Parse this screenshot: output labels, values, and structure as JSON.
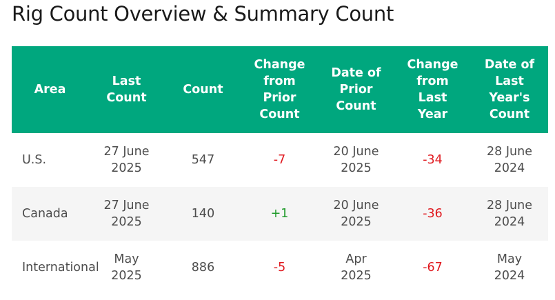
{
  "title": "Rig Count Overview & Summary Count",
  "headers": [
    "Area",
    "Last Count",
    "Count",
    "Change from Prior Count",
    "Date of Prior Count",
    "Change from Last Year",
    "Date of Last Year's Count"
  ],
  "rows": [
    {
      "area": "U.S.",
      "last_count": "27 June 2025",
      "count": "547",
      "change_prior": "-7",
      "date_prior": "20 June 2025",
      "change_year": "-34",
      "date_last_year": "28 June 2024"
    },
    {
      "area": "Canada",
      "last_count": "27 June 2025",
      "count": "140",
      "change_prior": "+1",
      "date_prior": "20 June 2025",
      "change_year": "-36",
      "date_last_year": "28 June 2024"
    },
    {
      "area": "International",
      "last_count": "May 2025",
      "count": "886",
      "change_prior": "-5",
      "date_prior": "Apr 2025",
      "change_year": "-67",
      "date_last_year": "May 2024"
    }
  ],
  "colors": {
    "header_bg": "#00a77e",
    "negative": "#e0191f",
    "positive": "#1f9a2a",
    "alt_row": "#f5f5f5"
  }
}
